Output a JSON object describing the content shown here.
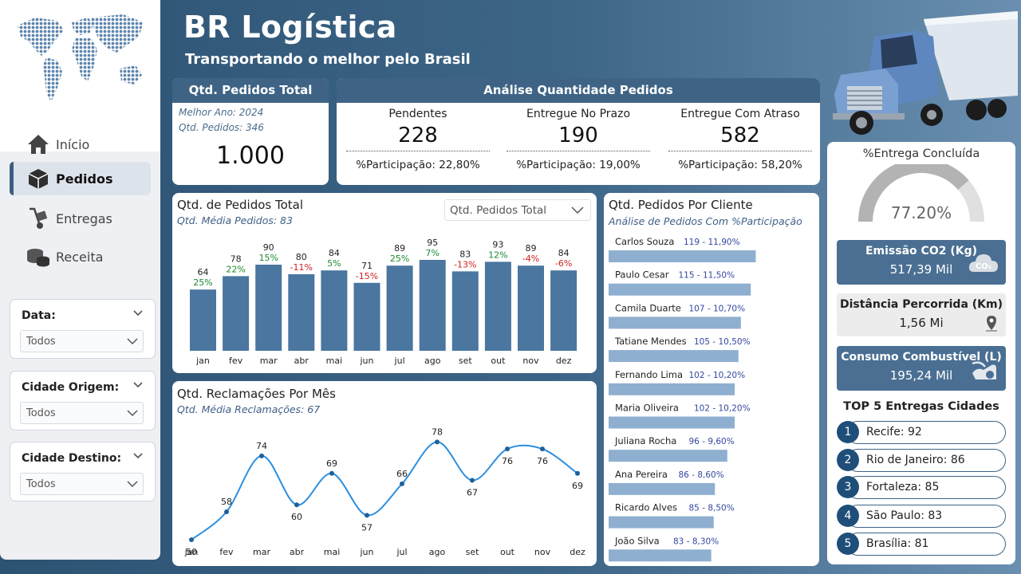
{
  "app": {
    "title": "BR Logística",
    "subtitle": "Transportando o melhor pelo Brasil"
  },
  "nav": [
    {
      "label": "Início",
      "icon": "home-icon"
    },
    {
      "label": "Pedidos",
      "icon": "package-icon",
      "active": true
    },
    {
      "label": "Entregas",
      "icon": "hand-truck-icon"
    },
    {
      "label": "Receita",
      "icon": "coins-icon"
    }
  ],
  "filters": [
    {
      "label": "Data:",
      "value": "Todos"
    },
    {
      "label": "Cidade Origem:",
      "value": "Todos"
    },
    {
      "label": "Cidade Destino:",
      "value": "Todos"
    }
  ],
  "total_card": {
    "title": "Qtd. Pedidos Total",
    "best_year": "Melhor Ano: 2024",
    "best_year_orders": "Qtd. Pedidos: 346",
    "value": "1.000"
  },
  "analysis": {
    "title": "Análise Quantidade Pedidos",
    "items": [
      {
        "label": "Pendentes",
        "value": "228",
        "pct": "%Participação: 22,80%"
      },
      {
        "label": "Entregue No Prazo",
        "value": "190",
        "pct": "%Participação: 19,00%"
      },
      {
        "label": "Entregue Com Atraso",
        "value": "582",
        "pct": "%Participação: 58,20%"
      }
    ]
  },
  "orders_chart": {
    "title": "Qtd. de Pedidos Total",
    "subtitle": "Qtd. Média Pedidos: 83",
    "dropdown": "Qtd. Pedidos Total",
    "chart_data": {
      "type": "bar",
      "categories": [
        "jan",
        "fev",
        "mar",
        "abr",
        "mai",
        "jun",
        "jul",
        "ago",
        "set",
        "out",
        "nov",
        "dez"
      ],
      "values": [
        64,
        78,
        90,
        80,
        84,
        71,
        89,
        95,
        83,
        93,
        89,
        84
      ],
      "changes": [
        "25%",
        "22%",
        "15%",
        "-11%",
        "5%",
        "-15%",
        "25%",
        "7%",
        "-13%",
        "12%",
        "-4%",
        "-6%"
      ],
      "color": "#4a76a0",
      "pos_color": "#1a8a2e",
      "neg_color": "#d11f1f"
    }
  },
  "complaints_chart": {
    "title": "Qtd. Reclamações Por Mês",
    "subtitle": "Qtd. Média Reclamações: 67",
    "chart_data": {
      "type": "line",
      "categories": [
        "jan",
        "fev",
        "mar",
        "abr",
        "mai",
        "jun",
        "jul",
        "ago",
        "set",
        "out",
        "nov",
        "dez"
      ],
      "values": [
        50,
        58,
        74,
        60,
        69,
        57,
        66,
        78,
        67,
        76,
        76,
        69
      ],
      "color": "#2b8fe0"
    }
  },
  "clients_chart": {
    "title": "Qtd. Pedidos Por Cliente",
    "subtitle": "Análise de Pedidos Com %Participação",
    "chart_data": {
      "type": "bar",
      "categories": [
        "Carlos Souza",
        "Paulo Cesar",
        "Camila Duarte",
        "Tatiane Mendes",
        "Fernando Lima",
        "Maria Oliveira",
        "Juliana Rocha",
        "Ana Pereira",
        "Ricardo Alves",
        "João Silva"
      ],
      "values": [
        119,
        115,
        107,
        105,
        102,
        102,
        96,
        86,
        85,
        83
      ],
      "labels": [
        "119 - 11,90%",
        "115 - 11,50%",
        "107 - 10,70%",
        "105 - 10,50%",
        "102 - 10,20%",
        "102 - 10,20%",
        "96 - 9,60%",
        "86 - 8,60%",
        "85 - 8,50%",
        "83 - 8,30%"
      ],
      "color": "#8fafd0"
    }
  },
  "gauge": {
    "title": "%Entrega Concluída",
    "value": "77.20%",
    "fraction": 0.772
  },
  "metrics": [
    {
      "label": "Emissão CO2 (Kg)",
      "value": "517,39 Mil",
      "icon": "co2-cloud-icon",
      "style": "dark"
    },
    {
      "label": "Distância Percorrida (Km)",
      "value": "1,56 Mi",
      "icon": "map-pin-icon",
      "style": "light"
    },
    {
      "label": "Consumo Combustível (L)",
      "value": "195,24 Mil",
      "icon": "fuel-pump-icon",
      "style": "dark"
    }
  ],
  "top_cities": {
    "title": "TOP 5 Entregas Cidades",
    "items": [
      {
        "rank": "1",
        "text": "Recife: 92"
      },
      {
        "rank": "2",
        "text": "Rio de Janeiro: 86"
      },
      {
        "rank": "3",
        "text": "Fortaleza: 85"
      },
      {
        "rank": "4",
        "text": "São Paulo: 83"
      },
      {
        "rank": "5",
        "text": "Brasília: 81"
      }
    ]
  },
  "colors": {
    "primary": "#3e6385",
    "accent_dark": "#1f4e79",
    "card_dark": "#4a6f93",
    "card_light": "#ececec"
  }
}
